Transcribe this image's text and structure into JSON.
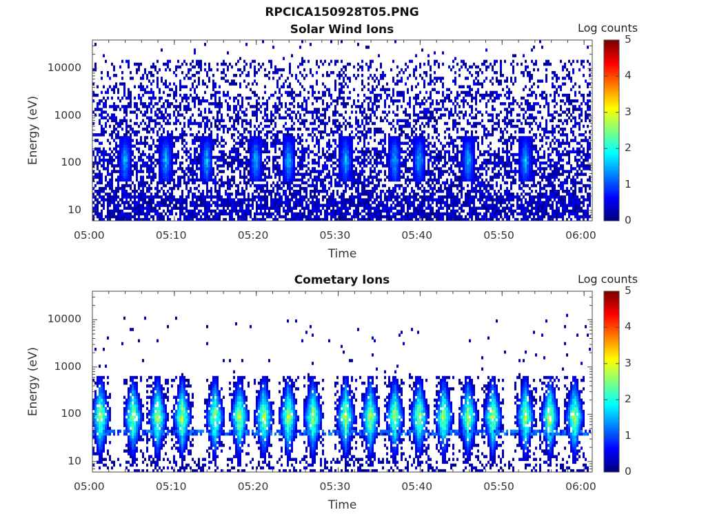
{
  "figure_title": "RPCICA150928T05.PNG",
  "colors": {
    "axis": "#333333",
    "background": "#ffffff"
  },
  "chart_data": [
    {
      "type": "heatmap",
      "title": "Solar Wind Ions",
      "xlabel": "Time",
      "ylabel": "Energy (eV)",
      "x_range": [
        "05:00",
        "06:01"
      ],
      "y_range_eV": [
        6,
        40000
      ],
      "y_scale": "log",
      "x_ticks": [
        "05:00",
        "05:10",
        "05:20",
        "05:30",
        "05:40",
        "05:50",
        "06:00"
      ],
      "y_ticks": [
        "10",
        "100",
        "1000",
        "10000"
      ],
      "colorbar": {
        "label": "Log counts",
        "ticks": [
          "0",
          "1",
          "2",
          "3",
          "4",
          "5"
        ],
        "range": [
          0,
          5
        ],
        "colormap": "jet"
      },
      "description_of_content": "sparse low counts (log ~0-1) across all energies, vertical bursts near 100 eV with peaks ~1.5-2",
      "burst_times": [
        "05:04",
        "05:09",
        "05:14",
        "05:20",
        "05:24",
        "05:31",
        "05:37",
        "05:40",
        "05:46",
        "05:53"
      ],
      "max_log_counts": 2
    },
    {
      "type": "heatmap",
      "title": "Cometary Ions",
      "xlabel": "Time",
      "ylabel": "Energy (eV)",
      "x_range": [
        "05:00",
        "06:01"
      ],
      "y_range_eV": [
        6,
        40000
      ],
      "y_scale": "log",
      "x_ticks": [
        "05:00",
        "05:10",
        "05:20",
        "05:30",
        "05:40",
        "05:50",
        "06:00"
      ],
      "y_ticks": [
        "10",
        "100",
        "1000",
        "10000"
      ],
      "colorbar": {
        "label": "Log counts",
        "ticks": [
          "0",
          "1",
          "2",
          "3",
          "4",
          "5"
        ],
        "range": [
          0,
          5
        ],
        "colormap": "jet"
      },
      "description_of_content": "periodic plumes between ~10 and ~600 eV peaking near 80-100 eV at log counts ~2.5-3",
      "burst_times": [
        "05:01",
        "05:05",
        "05:08",
        "05:11",
        "05:15",
        "05:18",
        "05:21",
        "05:24",
        "05:27",
        "05:31",
        "05:34",
        "05:37",
        "05:40",
        "05:43",
        "05:46",
        "05:49",
        "05:53",
        "05:56",
        "05:59"
      ],
      "max_log_counts": 3
    }
  ]
}
